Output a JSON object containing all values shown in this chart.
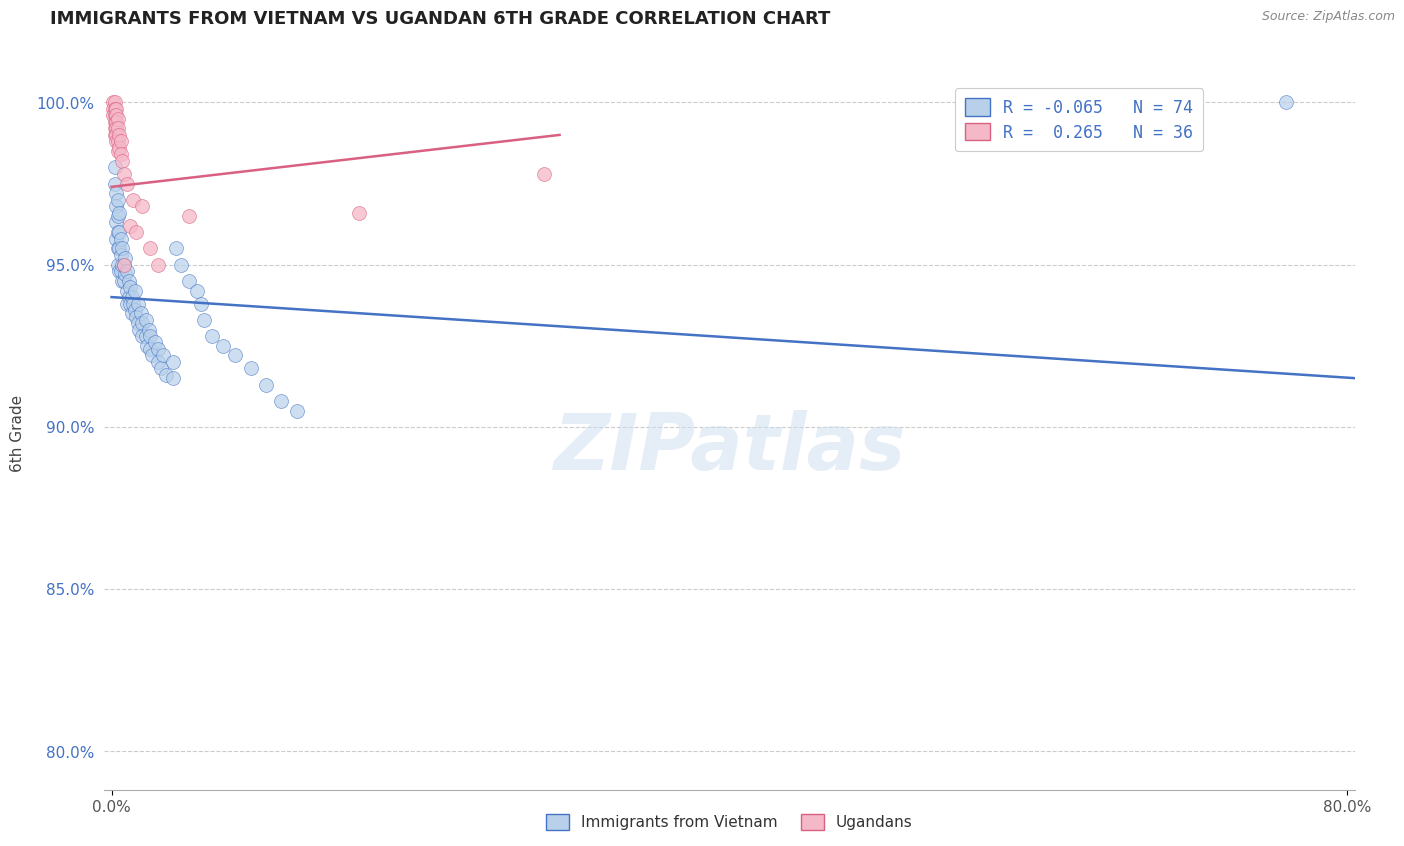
{
  "title": "IMMIGRANTS FROM VIETNAM VS UGANDAN 6TH GRADE CORRELATION CHART",
  "source_text": "Source: ZipAtlas.com",
  "ylabel": "6th Grade",
  "watermark": "ZIPatlas",
  "xlim": [
    -0.005,
    0.805
  ],
  "ylim": [
    0.788,
    1.008
  ],
  "x_ticks": [
    0.0,
    0.8
  ],
  "x_tick_labels": [
    "0.0%",
    "80.0%"
  ],
  "y_ticks": [
    0.8,
    0.85,
    0.9,
    0.95,
    1.0
  ],
  "y_tick_labels": [
    "80.0%",
    "85.0%",
    "90.0%",
    "95.0%",
    "100.0%"
  ],
  "blue_color": "#b8d0ea",
  "pink_color": "#f4b8c8",
  "line_blue": "#4472c4",
  "line_pink": "#d96080",
  "legend_label1": "Immigrants from Vietnam",
  "legend_label2": "Ugandans",
  "blue_scatter": [
    [
      0.002,
      0.98
    ],
    [
      0.002,
      0.975
    ],
    [
      0.003,
      0.972
    ],
    [
      0.003,
      0.968
    ],
    [
      0.003,
      0.963
    ],
    [
      0.003,
      0.958
    ],
    [
      0.004,
      0.97
    ],
    [
      0.004,
      0.965
    ],
    [
      0.004,
      0.96
    ],
    [
      0.004,
      0.955
    ],
    [
      0.004,
      0.95
    ],
    [
      0.005,
      0.966
    ],
    [
      0.005,
      0.96
    ],
    [
      0.005,
      0.955
    ],
    [
      0.005,
      0.948
    ],
    [
      0.006,
      0.958
    ],
    [
      0.006,
      0.953
    ],
    [
      0.006,
      0.948
    ],
    [
      0.007,
      0.955
    ],
    [
      0.007,
      0.95
    ],
    [
      0.007,
      0.945
    ],
    [
      0.008,
      0.95
    ],
    [
      0.008,
      0.945
    ],
    [
      0.009,
      0.952
    ],
    [
      0.009,
      0.947
    ],
    [
      0.01,
      0.948
    ],
    [
      0.01,
      0.942
    ],
    [
      0.01,
      0.938
    ],
    [
      0.011,
      0.945
    ],
    [
      0.011,
      0.94
    ],
    [
      0.012,
      0.943
    ],
    [
      0.012,
      0.938
    ],
    [
      0.013,
      0.94
    ],
    [
      0.013,
      0.935
    ],
    [
      0.014,
      0.938
    ],
    [
      0.015,
      0.942
    ],
    [
      0.015,
      0.936
    ],
    [
      0.016,
      0.934
    ],
    [
      0.017,
      0.938
    ],
    [
      0.017,
      0.932
    ],
    [
      0.018,
      0.93
    ],
    [
      0.019,
      0.935
    ],
    [
      0.02,
      0.932
    ],
    [
      0.02,
      0.928
    ],
    [
      0.022,
      0.933
    ],
    [
      0.022,
      0.928
    ],
    [
      0.023,
      0.925
    ],
    [
      0.024,
      0.93
    ],
    [
      0.025,
      0.928
    ],
    [
      0.025,
      0.924
    ],
    [
      0.026,
      0.922
    ],
    [
      0.028,
      0.926
    ],
    [
      0.03,
      0.924
    ],
    [
      0.03,
      0.92
    ],
    [
      0.032,
      0.918
    ],
    [
      0.033,
      0.922
    ],
    [
      0.035,
      0.916
    ],
    [
      0.04,
      0.92
    ],
    [
      0.04,
      0.915
    ],
    [
      0.042,
      0.955
    ],
    [
      0.045,
      0.95
    ],
    [
      0.05,
      0.945
    ],
    [
      0.055,
      0.942
    ],
    [
      0.058,
      0.938
    ],
    [
      0.06,
      0.933
    ],
    [
      0.065,
      0.928
    ],
    [
      0.072,
      0.925
    ],
    [
      0.08,
      0.922
    ],
    [
      0.09,
      0.918
    ],
    [
      0.1,
      0.913
    ],
    [
      0.11,
      0.908
    ],
    [
      0.12,
      0.905
    ],
    [
      0.76,
      1.0
    ]
  ],
  "pink_scatter": [
    [
      0.001,
      1.0
    ],
    [
      0.001,
      0.998
    ],
    [
      0.001,
      0.996
    ],
    [
      0.002,
      1.0
    ],
    [
      0.002,
      0.998
    ],
    [
      0.002,
      0.996
    ],
    [
      0.002,
      0.994
    ],
    [
      0.002,
      0.992
    ],
    [
      0.002,
      0.99
    ],
    [
      0.003,
      0.998
    ],
    [
      0.003,
      0.996
    ],
    [
      0.003,
      0.994
    ],
    [
      0.003,
      0.992
    ],
    [
      0.003,
      0.99
    ],
    [
      0.003,
      0.988
    ],
    [
      0.004,
      0.995
    ],
    [
      0.004,
      0.992
    ],
    [
      0.004,
      0.988
    ],
    [
      0.004,
      0.985
    ],
    [
      0.005,
      0.99
    ],
    [
      0.005,
      0.986
    ],
    [
      0.006,
      0.988
    ],
    [
      0.006,
      0.984
    ],
    [
      0.007,
      0.982
    ],
    [
      0.008,
      0.978
    ],
    [
      0.008,
      0.95
    ],
    [
      0.01,
      0.975
    ],
    [
      0.012,
      0.962
    ],
    [
      0.014,
      0.97
    ],
    [
      0.016,
      0.96
    ],
    [
      0.02,
      0.968
    ],
    [
      0.025,
      0.955
    ],
    [
      0.03,
      0.95
    ],
    [
      0.05,
      0.965
    ],
    [
      0.16,
      0.966
    ],
    [
      0.28,
      0.978
    ]
  ],
  "blue_line_x": [
    0.0,
    0.805
  ],
  "blue_line_y": [
    0.94,
    0.915
  ],
  "pink_line_x": [
    0.0,
    0.29
  ],
  "pink_line_y": [
    0.974,
    0.99
  ]
}
